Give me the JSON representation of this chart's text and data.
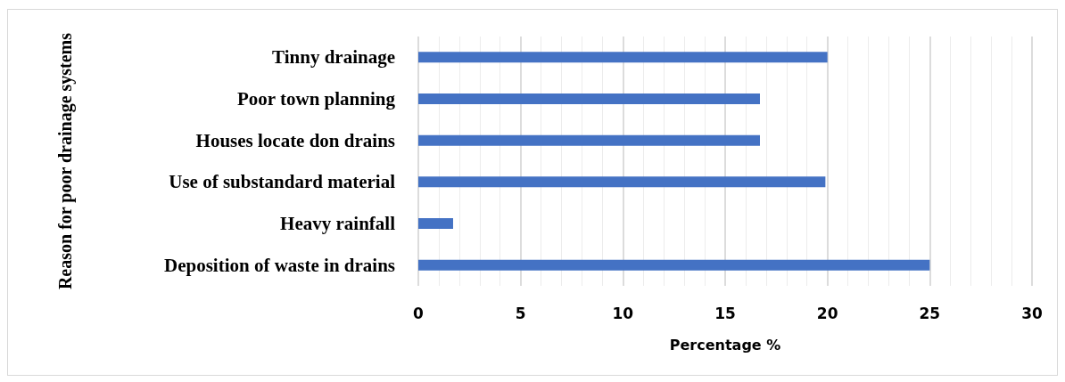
{
  "chart_data": {
    "type": "bar",
    "orientation": "horizontal",
    "categories": [
      "Tinny drainage",
      "Poor town planning",
      "Houses locate don drains",
      "Use of substandard material",
      "Heavy rainfall",
      "Deposition of waste in drains"
    ],
    "values": [
      20,
      16.7,
      16.7,
      19.9,
      1.7,
      25
    ],
    "color": "#4472c4",
    "xlabel": "Percentage %",
    "ylabel": "Reason for poor drainage systems",
    "xlim": [
      0,
      30
    ],
    "xticks": [
      0,
      5,
      10,
      15,
      20,
      25,
      30
    ],
    "grid": "x"
  }
}
